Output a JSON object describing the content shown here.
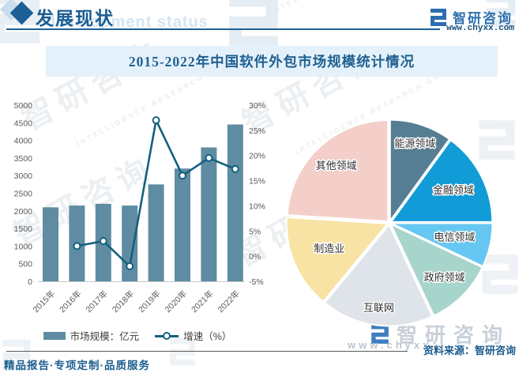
{
  "header": {
    "section_title": "发展现状",
    "section_subtitle": "development status",
    "brand": {
      "name": "智研咨询",
      "website": "www.chyxx.com"
    }
  },
  "title_band": {
    "title": "2015-2022年中国软件外包市场规模统计情况"
  },
  "chart_data": [
    {
      "type": "bar",
      "title": "2015-2022年中国软件外包市场规模统计情况",
      "categories": [
        "2015年",
        "2016年",
        "2017年",
        "2018年",
        "2019年",
        "2020年",
        "2021年",
        "2022年"
      ],
      "series": [
        {
          "name": "市场规模：亿元",
          "type": "bar",
          "color": "#5f8ca2",
          "values": [
            2100,
            2150,
            2200,
            2150,
            2750,
            3200,
            3800,
            4450
          ]
        },
        {
          "name": "增速（%）",
          "type": "line",
          "color": "#14607f",
          "values": [
            null,
            2,
            3,
            -2,
            27,
            16,
            19.5,
            17.3
          ]
        }
      ],
      "left_axis": {
        "min": 0,
        "max": 5000,
        "step": 500,
        "ticks": [
          "0",
          "500",
          "1000",
          "1500",
          "2000",
          "2500",
          "3000",
          "3500",
          "4000",
          "4500",
          "5000"
        ]
      },
      "right_axis": {
        "min": -5,
        "max": 30,
        "step": 5,
        "ticks": [
          "-5%",
          "0%",
          "5%",
          "10%",
          "15%",
          "20%",
          "25%",
          "30%"
        ]
      },
      "grid": false,
      "legend_position": "bottom"
    },
    {
      "type": "pie",
      "labels": [
        "能源领域",
        "金融领域",
        "电信领域",
        "政府领域",
        "互联网",
        "制造业",
        "其他领域"
      ],
      "values": [
        10,
        15,
        7,
        11,
        18,
        15,
        24
      ],
      "colors": [
        "#567e93",
        "#119bd7",
        "#66c7f2",
        "#a8d5cb",
        "#dfe4ea",
        "#f8e3a5",
        "#f4cfc9"
      ],
      "label_radius": [
        0.8,
        0.69,
        0.64,
        0.75,
        0.83,
        0.63,
        0.75
      ],
      "start_angle": 0,
      "clockwise": true,
      "legend_position": "none"
    }
  ],
  "source": {
    "label": "资料来源：智研咨询"
  },
  "footer": {
    "services": "精品报告·专项定制·品质服务"
  },
  "watermark": {
    "brand": "智研咨询",
    "tagline": "INTELLIGENCE RESEARCH GROUP",
    "site": "www.chyxx"
  },
  "colors": {
    "accent_dark_blue": "#1d5f96",
    "band_bg": "#e5f1fa",
    "bar": "#5f8ca2",
    "line": "#14607f"
  }
}
